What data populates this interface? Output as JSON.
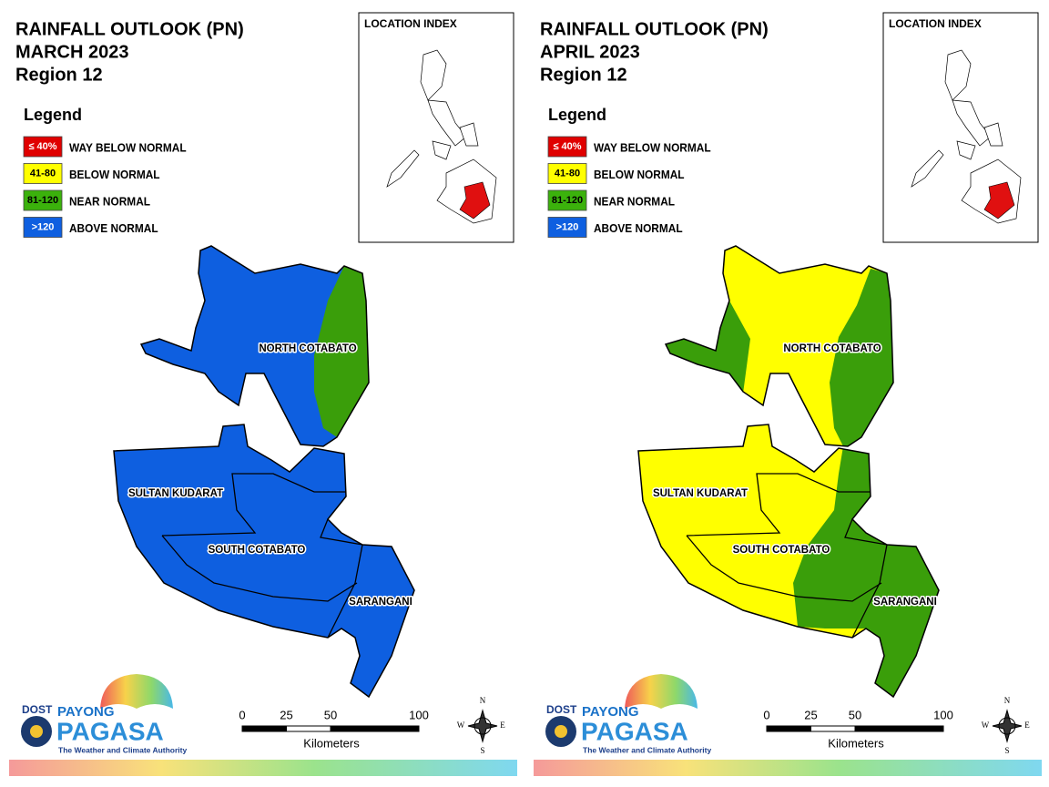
{
  "panels": [
    {
      "title": "RAINFALL OUTLOOK (PN)",
      "period": "MARCH 2023",
      "region": "Region 12",
      "legend_title": "Legend",
      "legend": [
        {
          "key": "≤ 40%",
          "label": "WAY BELOW NORMAL",
          "color": "#e00000"
        },
        {
          "key": "41-80",
          "label": "BELOW NORMAL",
          "color": "#ffff00"
        },
        {
          "key": "81-120",
          "label": "NEAR NORMAL",
          "color": "#3bb20c"
        },
        {
          "key": ">120",
          "label": "ABOVE NORMAL",
          "color": "#0e5fe0"
        }
      ],
      "location_index": "LOCATION INDEX",
      "provinces": [
        "NORTH COTABATO",
        "SULTAN KUDARAT",
        "SOUTH COTABATO",
        "SARANGANI"
      ],
      "map_colors": {
        "base": "#0e5fe0",
        "accent": "#3a9e0a"
      },
      "scale": {
        "ticks": [
          0,
          25,
          50,
          100
        ],
        "unit": "Kilometers"
      },
      "compass": [
        "N",
        "E",
        "S",
        "W"
      ],
      "logo": {
        "agency": "DOST",
        "brand": "PAYONG",
        "name": "PAGASA",
        "tagline": "The Weather and Climate Authority"
      }
    },
    {
      "title": "RAINFALL OUTLOOK (PN)",
      "period": "APRIL 2023",
      "region": "Region 12",
      "legend_title": "Legend",
      "legend": [
        {
          "key": "≤ 40%",
          "label": "WAY BELOW NORMAL",
          "color": "#e00000"
        },
        {
          "key": "41-80",
          "label": "BELOW NORMAL",
          "color": "#ffff00"
        },
        {
          "key": "81-120",
          "label": "NEAR NORMAL",
          "color": "#3bb20c"
        },
        {
          "key": ">120",
          "label": "ABOVE NORMAL",
          "color": "#0e5fe0"
        }
      ],
      "location_index": "LOCATION INDEX",
      "provinces": [
        "NORTH COTABATO",
        "SULTAN KUDARAT",
        "SOUTH COTABATO",
        "SARANGANI"
      ],
      "map_colors": {
        "base": "#ffff00",
        "accent": "#3a9e0a"
      },
      "scale": {
        "ticks": [
          0,
          25,
          50,
          100
        ],
        "unit": "Kilometers"
      },
      "compass": [
        "N",
        "E",
        "S",
        "W"
      ],
      "logo": {
        "agency": "DOST",
        "brand": "PAYONG",
        "name": "PAGASA",
        "tagline": "The Weather and Climate Authority"
      }
    }
  ]
}
